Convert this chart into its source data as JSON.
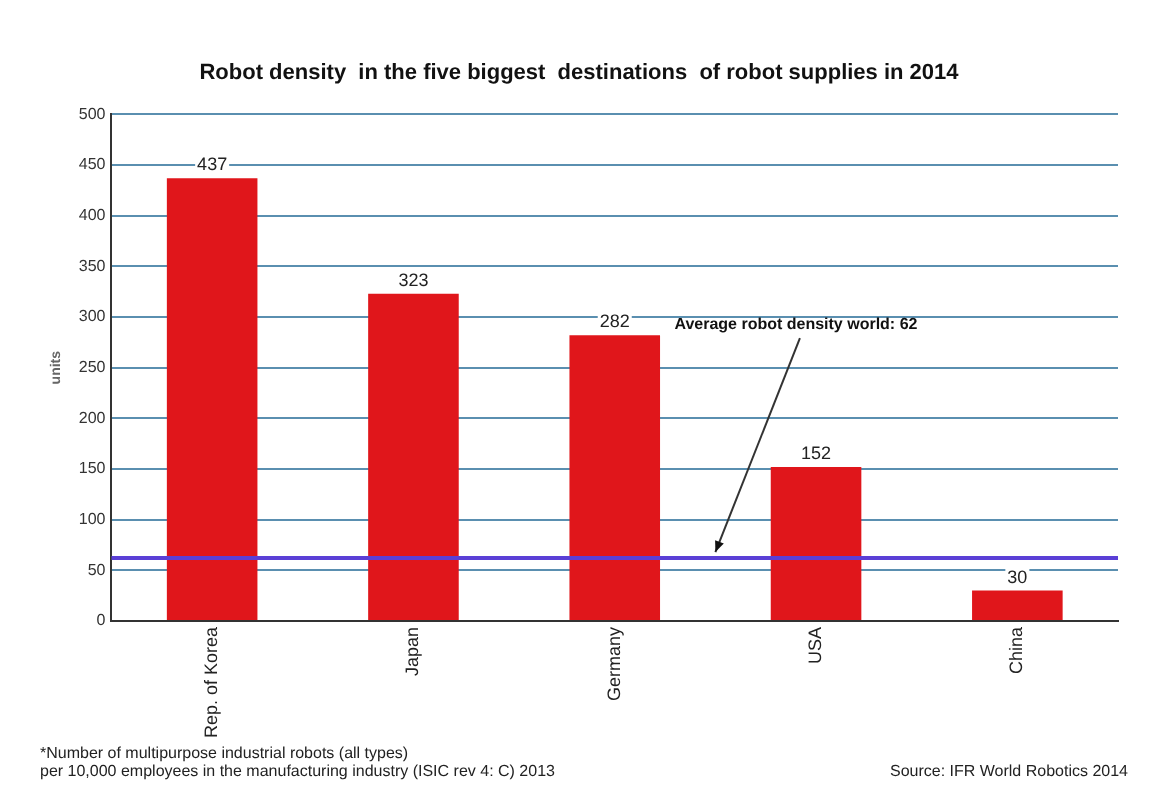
{
  "chart_data": {
    "type": "bar",
    "title": "Robot density  in the five biggest  destinations  of robot supplies in 2014",
    "ylabel": "units",
    "categories": [
      "Rep. of Korea",
      "Japan",
      "Germany",
      "USA",
      "China"
    ],
    "values": [
      437,
      323,
      282,
      152,
      30
    ],
    "color": "#e0161b",
    "data_labels": true,
    "ylim": [
      0,
      500
    ],
    "yticks": [
      0,
      50,
      100,
      150,
      200,
      250,
      300,
      350,
      400,
      450,
      500
    ],
    "grid": "y",
    "ref_lines": [
      {
        "axis": "y",
        "value": 62,
        "label": "Average robot density world: 62",
        "color": "#5a3fd6"
      }
    ],
    "annotations": [
      "*Number of multipurpose industrial robots (all types)\nper 10,000 employees in the manufacturing industry (ISIC rev 4: C) 2013",
      "Source: IFR World Robotics 2014"
    ]
  }
}
